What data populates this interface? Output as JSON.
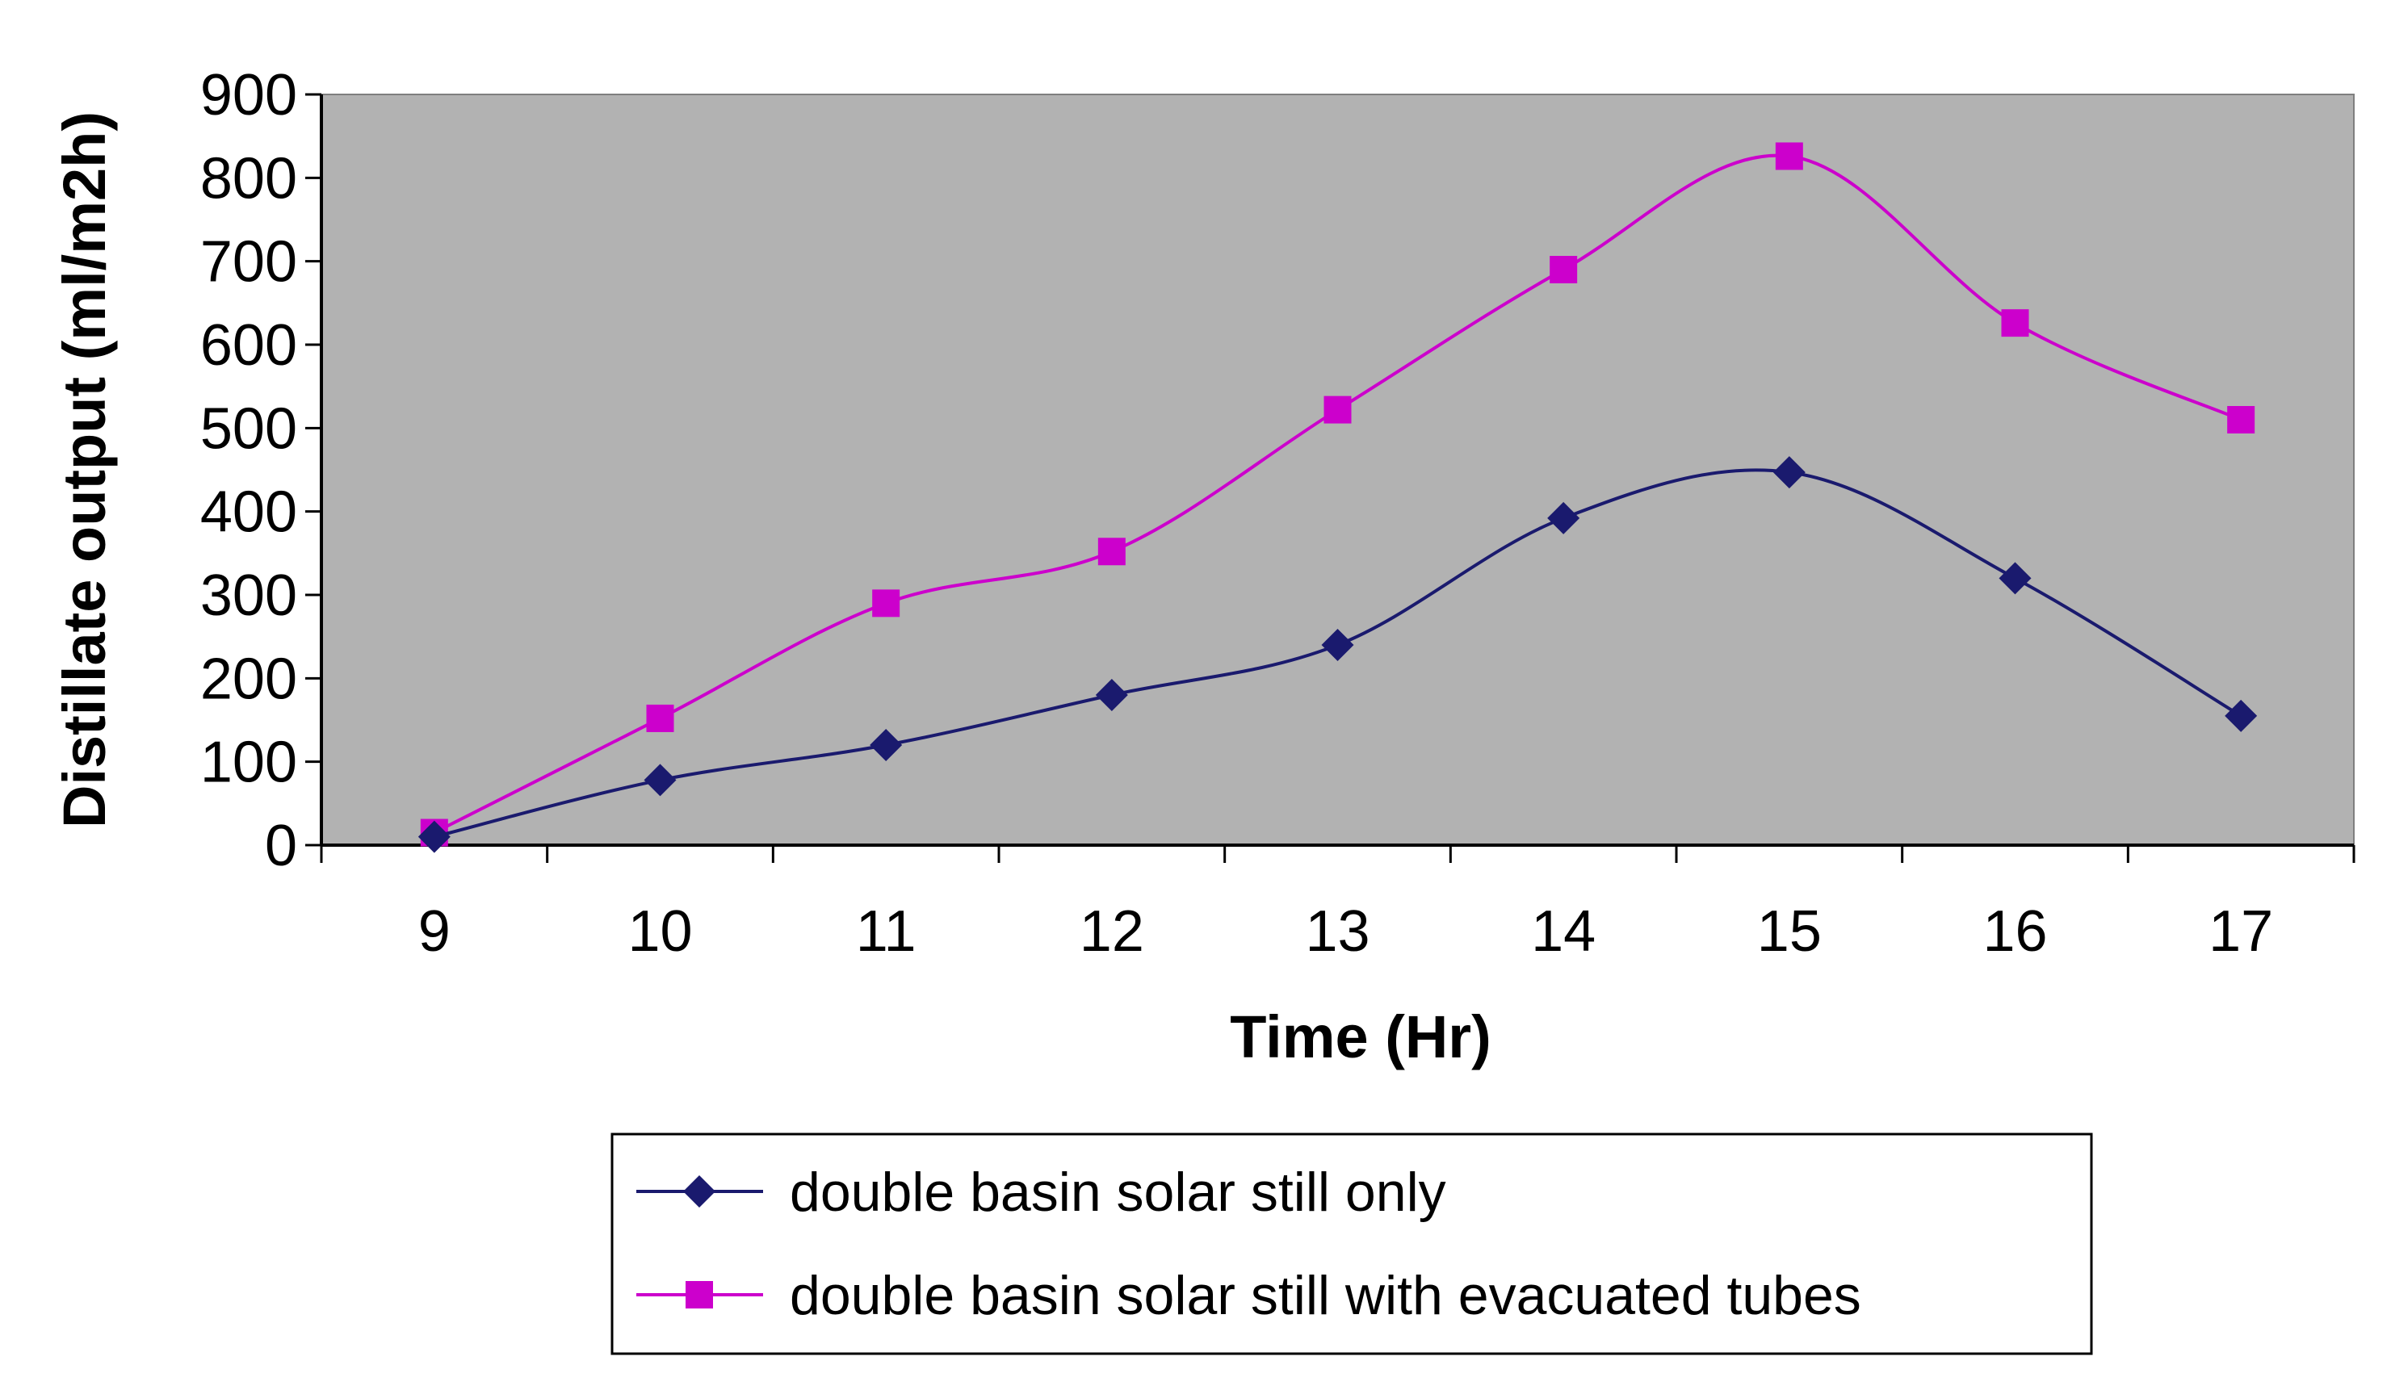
{
  "chart_data": {
    "type": "line",
    "title": "",
    "xlabel": "Time (Hr)",
    "ylabel": "Distillate output (ml/m2h)",
    "categories": [
      "9",
      "10",
      "11",
      "12",
      "13",
      "14",
      "15",
      "16",
      "17"
    ],
    "ylim": [
      0,
      900
    ],
    "yticks": [
      "0",
      "100",
      "200",
      "300",
      "400",
      "500",
      "600",
      "700",
      "800",
      "900"
    ],
    "grid": false,
    "plot_background": "#b2b2b2",
    "legend_position": "bottom",
    "series": [
      {
        "name": "double basin solar still only",
        "values": [
          10,
          78,
          120,
          180,
          240,
          392,
          447,
          320,
          155
        ],
        "color": "#1a1a6e",
        "marker": "diamond"
      },
      {
        "name": "double basin solar still with evacuated tubes",
        "values": [
          15,
          152,
          290,
          352,
          522,
          690,
          826,
          626,
          510
        ],
        "color": "#cc00cc",
        "marker": "square"
      }
    ]
  }
}
